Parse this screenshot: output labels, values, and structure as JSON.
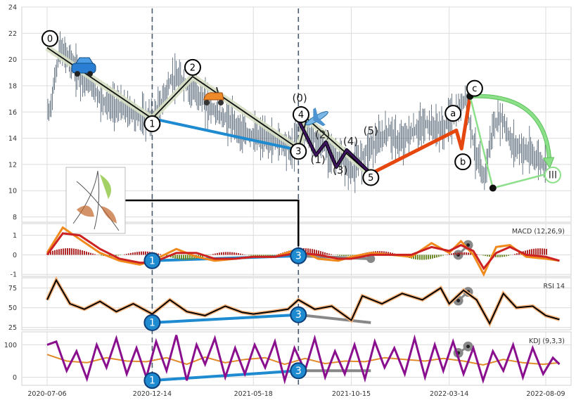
{
  "chart_data": [
    {
      "type": "line",
      "panel": "price",
      "title": "",
      "xlabel": "",
      "ylabel": "",
      "x_ticks": [
        "2020-07-06",
        "2020-12-14",
        "2021-05-18",
        "2021-10-15",
        "2022-03-14",
        "2022-08-09"
      ],
      "y_ticks": [
        8,
        10,
        12,
        14,
        16,
        18,
        20,
        22,
        24
      ],
      "ylim": [
        7.6,
        24
      ],
      "grid": true,
      "series": [
        {
          "name": "",
          "style": "candlestick",
          "x": [
            "2020-07-10",
            "2020-07-25",
            "2020-08-10",
            "2020-08-25",
            "2020-09-10",
            "2020-09-25",
            "2020-10-10",
            "2020-10-25",
            "2020-11-10",
            "2020-11-25",
            "2020-12-14",
            "2020-12-28",
            "2021-01-12",
            "2021-01-28",
            "2021-02-14",
            "2021-03-01",
            "2021-03-16",
            "2021-04-01",
            "2021-04-16",
            "2021-05-01",
            "2021-05-18",
            "2021-06-03",
            "2021-06-18",
            "2021-07-03",
            "2021-07-18",
            "2021-07-26",
            "2021-08-08",
            "2021-08-22",
            "2021-09-06",
            "2021-09-20",
            "2021-10-04",
            "2021-10-15",
            "2021-11-01",
            "2021-11-14",
            "2021-11-28",
            "2021-12-12",
            "2021-12-26",
            "2022-01-09",
            "2022-01-23",
            "2022-02-06",
            "2022-02-20",
            "2022-03-06",
            "2022-03-14",
            "2022-03-28",
            "2022-04-08",
            "2022-04-22",
            "2022-05-06",
            "2022-05-20",
            "2022-06-03",
            "2022-06-17",
            "2022-07-01",
            "2022-07-15",
            "2022-07-29",
            "2022-08-09",
            "2022-08-23"
          ],
          "values": [
            16.0,
            20.8,
            20.0,
            18.6,
            18.2,
            17.0,
            16.6,
            16.4,
            16.0,
            15.6,
            15.4,
            16.6,
            18.5,
            18.4,
            17.6,
            17.0,
            16.2,
            15.6,
            15.2,
            14.4,
            14.2,
            14.0,
            13.8,
            13.6,
            13.1,
            15.2,
            14.4,
            13.8,
            13.3,
            12.7,
            12.2,
            11.4,
            12.6,
            13.4,
            13.8,
            14.6,
            13.6,
            14.2,
            14.6,
            15.1,
            14.8,
            14.6,
            15.5,
            16.0,
            17.2,
            13.2,
            10.8,
            14.8,
            15.6,
            13.6,
            13.2,
            12.8,
            12.4,
            11.8,
            11.4
          ]
        }
      ],
      "wave_labels": [
        "0",
        "1",
        "2",
        "3",
        "4",
        "5",
        "(0)",
        "(1)",
        "(2)",
        "(3)",
        "(4)",
        "(5)",
        "a",
        "b",
        "c",
        "III",
        "3"
      ]
    },
    {
      "type": "line",
      "panel": "MACD",
      "title": "MACD (12,26,9)",
      "y_ticks": [
        1,
        0,
        -1
      ],
      "ylim": [
        -1.1,
        1.6
      ],
      "series": [
        {
          "name": "",
          "x": [
            "2020-07-06",
            "2020-07-30",
            "2020-08-25",
            "2020-09-25",
            "2020-10-25",
            "2020-11-25",
            "2020-12-14",
            "2021-01-20",
            "2021-02-20",
            "2021-03-20",
            "2021-04-20",
            "2021-05-18",
            "2021-06-20",
            "2021-07-26",
            "2021-08-25",
            "2021-09-25",
            "2021-10-15",
            "2021-11-15",
            "2021-12-15",
            "2022-01-15",
            "2022-02-15",
            "2022-03-14",
            "2022-04-01",
            "2022-04-20",
            "2022-05-06",
            "2022-05-25",
            "2022-06-15",
            "2022-07-10",
            "2022-08-09",
            "2022-08-30"
          ],
          "values": [
            0.1,
            1.4,
            0.8,
            0.1,
            -0.3,
            -0.5,
            -0.3,
            0.3,
            -0.1,
            -0.3,
            -0.2,
            -0.1,
            -0.1,
            0.3,
            -0.2,
            -0.3,
            -0.1,
            0.1,
            0.0,
            -0.1,
            0.6,
            0.1,
            0.7,
            0.0,
            -1.0,
            0.4,
            0.5,
            -0.1,
            -0.2,
            -0.3
          ]
        },
        {
          "name": "",
          "x": [
            "2020-07-06",
            "2020-07-30",
            "2020-08-25",
            "2020-09-25",
            "2020-10-25",
            "2020-11-25",
            "2020-12-14",
            "2021-01-20",
            "2021-02-20",
            "2021-03-20",
            "2021-04-20",
            "2021-05-18",
            "2021-06-20",
            "2021-07-26",
            "2021-08-25",
            "2021-09-25",
            "2021-10-15",
            "2021-11-15",
            "2021-12-15",
            "2022-01-15",
            "2022-02-15",
            "2022-03-14",
            "2022-04-01",
            "2022-04-20",
            "2022-05-06",
            "2022-05-25",
            "2022-06-15",
            "2022-07-10",
            "2022-08-09",
            "2022-08-30"
          ],
          "values": [
            0.0,
            1.1,
            1.0,
            0.3,
            -0.2,
            -0.4,
            -0.4,
            0.1,
            0.1,
            -0.2,
            -0.2,
            -0.1,
            -0.1,
            0.1,
            0.0,
            -0.2,
            -0.2,
            0.0,
            0.0,
            0.0,
            0.4,
            0.2,
            0.5,
            0.2,
            -0.7,
            0.1,
            0.4,
            0.0,
            -0.1,
            -0.3
          ]
        }
      ]
    },
    {
      "type": "line",
      "panel": "RSI",
      "title": "RSI 14",
      "y_ticks": [
        75,
        50,
        25
      ],
      "ylim": [
        22,
        88
      ],
      "series": [
        {
          "name": "",
          "x": [
            "2020-07-06",
            "2020-07-20",
            "2020-08-10",
            "2020-09-01",
            "2020-09-25",
            "2020-10-20",
            "2020-11-15",
            "2020-12-14",
            "2021-01-10",
            "2021-02-05",
            "2021-03-05",
            "2021-04-05",
            "2021-05-01",
            "2021-05-18",
            "2021-06-15",
            "2021-07-10",
            "2021-07-26",
            "2021-08-20",
            "2021-09-15",
            "2021-10-15",
            "2021-11-01",
            "2021-12-01",
            "2022-01-01",
            "2022-02-01",
            "2022-03-01",
            "2022-03-14",
            "2022-04-05",
            "2022-04-25",
            "2022-05-15",
            "2022-06-05",
            "2022-06-25",
            "2022-07-20",
            "2022-08-09",
            "2022-08-30"
          ],
          "values": [
            60,
            85,
            55,
            48,
            58,
            45,
            55,
            42,
            60,
            45,
            40,
            52,
            44,
            42,
            45,
            48,
            60,
            48,
            52,
            34,
            65,
            55,
            68,
            60,
            75,
            55,
            72,
            60,
            30,
            68,
            50,
            52,
            40,
            35
          ]
        }
      ]
    },
    {
      "type": "line",
      "panel": "KDJ",
      "title": "KDJ (9,3,3)",
      "y_ticks": [
        100,
        0
      ],
      "ylim": [
        -25,
        140
      ],
      "series": [
        {
          "name": "",
          "x": [
            "2020-07-06",
            "2020-07-20",
            "2020-08-05",
            "2020-08-20",
            "2020-09-05",
            "2020-09-20",
            "2020-10-05",
            "2020-10-20",
            "2020-11-05",
            "2020-11-20",
            "2020-12-05",
            "2020-12-20",
            "2021-01-05",
            "2021-01-20",
            "2021-02-05",
            "2021-02-20",
            "2021-03-05",
            "2021-03-20",
            "2021-04-05",
            "2021-04-20",
            "2021-05-05",
            "2021-05-20",
            "2021-06-05",
            "2021-06-20",
            "2021-07-05",
            "2021-07-20",
            "2021-08-05",
            "2021-08-20",
            "2021-09-05",
            "2021-09-20",
            "2021-10-05",
            "2021-10-20",
            "2021-11-05",
            "2021-11-20",
            "2021-12-05",
            "2021-12-20",
            "2022-01-05",
            "2022-01-20",
            "2022-02-05",
            "2022-02-20",
            "2022-03-05",
            "2022-03-20",
            "2022-04-05",
            "2022-04-20",
            "2022-05-05",
            "2022-05-20",
            "2022-06-05",
            "2022-06-20",
            "2022-07-05",
            "2022-07-20",
            "2022-08-05",
            "2022-08-20",
            "2022-08-30"
          ],
          "values": [
            100,
            110,
            20,
            80,
            -5,
            100,
            30,
            120,
            10,
            90,
            0,
            110,
            20,
            130,
            -10,
            100,
            40,
            120,
            0,
            90,
            10,
            100,
            30,
            110,
            -10,
            90,
            20,
            120,
            0,
            80,
            10,
            100,
            -5,
            110,
            30,
            90,
            10,
            120,
            0,
            100,
            20,
            110,
            10,
            90,
            -10,
            80,
            20,
            100,
            0,
            90,
            10,
            60,
            40
          ]
        },
        {
          "name": "",
          "x": [
            "2020-07-06",
            "2020-08-05",
            "2020-09-05",
            "2020-10-05",
            "2020-11-05",
            "2020-12-05",
            "2021-01-05",
            "2021-02-05",
            "2021-03-05",
            "2021-04-05",
            "2021-05-05",
            "2021-06-05",
            "2021-07-05",
            "2021-08-05",
            "2021-09-05",
            "2021-10-05",
            "2021-11-05",
            "2021-12-05",
            "2022-01-05",
            "2022-02-05",
            "2022-03-05",
            "2022-04-05",
            "2022-05-05",
            "2022-06-05",
            "2022-07-05",
            "2022-08-05",
            "2022-08-30"
          ],
          "values": [
            70,
            50,
            45,
            60,
            50,
            48,
            60,
            40,
            62,
            45,
            55,
            60,
            40,
            58,
            42,
            50,
            48,
            60,
            55,
            50,
            58,
            50,
            38,
            55,
            45,
            40,
            45
          ]
        }
      ]
    }
  ],
  "colors": {
    "grid": "#dcdcdc",
    "candles": "#4a5a6a",
    "wave_fill": "#d6dfc4",
    "wave_line": "#111111",
    "blue_line": "#1e8bd0",
    "purple_wave": "#3d1360",
    "orange_wave": "#e5470f",
    "green_line": "#8de08a",
    "macd_line": "#f08a1c",
    "signal_line": "#cc2222",
    "rsi_halo": "#f7b37a",
    "kdj_line": "#8a0f8e",
    "gray_line": "#888888",
    "circle_blue": "#1e8bd0"
  },
  "icons": [
    "car-icon",
    "scooter-icon",
    "airplane-icon",
    "butterfly-thumbnail"
  ]
}
